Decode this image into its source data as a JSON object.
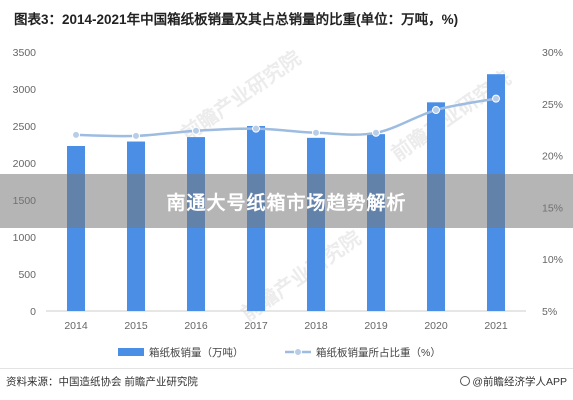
{
  "title": "图表3：2014-2021年中国箱纸板销量及其占总销量的比重(单位：万吨，%)",
  "overlay_banner": "南通大号纸箱市场趋势解析",
  "footer": {
    "source": "资料来源：中国造纸协会 前瞻产业研究院",
    "brand": "@前瞻经济学人APP"
  },
  "watermark": "前瞻产业研究院",
  "colors": {
    "bar": "#4a8ee6",
    "line": "#9dbce0",
    "marker": "#b8cde6",
    "axis_text": "#666666",
    "grid": "#eeeeee"
  },
  "chart_data": {
    "type": "bar",
    "categories": [
      "2014",
      "2015",
      "2016",
      "2017",
      "2018",
      "2019",
      "2020",
      "2021"
    ],
    "series": [
      {
        "name": "箱纸板销量（万吨）",
        "type": "bar",
        "axis": "left",
        "values": [
          2230,
          2290,
          2350,
          2500,
          2340,
          2390,
          2820,
          3200
        ]
      },
      {
        "name": "箱纸板销量所占比重（%）",
        "type": "line",
        "axis": "right",
        "values": [
          22.0,
          21.9,
          22.4,
          22.6,
          22.2,
          22.2,
          24.4,
          25.5
        ]
      }
    ],
    "y_left": {
      "ylim": [
        0,
        3500
      ],
      "ticks": [
        "0",
        "500",
        "1000",
        "1500",
        "2000",
        "2500",
        "3000",
        "3500"
      ]
    },
    "y_right": {
      "ylim": [
        5,
        30
      ],
      "ticks": [
        "5%",
        "10%",
        "15%",
        "20%",
        "25%",
        "30%"
      ]
    },
    "legend": "bottom-center",
    "grid": false
  }
}
